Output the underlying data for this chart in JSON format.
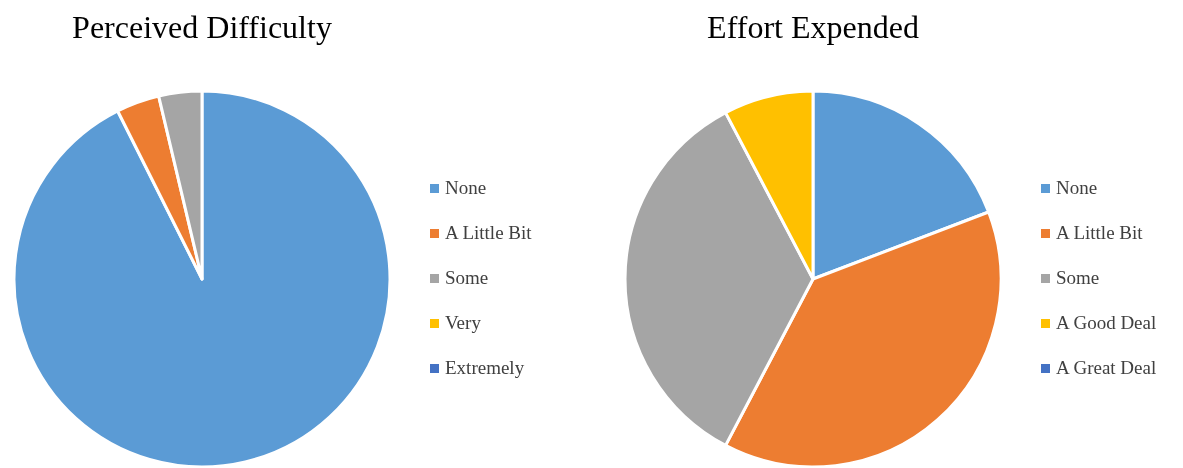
{
  "chart_data": [
    {
      "type": "pie",
      "title": "Perceived Difficulty",
      "categories": [
        "None",
        "A Little Bit",
        "Some",
        "Very",
        "Extremely"
      ],
      "values": [
        92.6,
        3.7,
        3.7,
        0,
        0
      ],
      "colors": [
        "#5b9bd5",
        "#ed7d31",
        "#a5a5a5",
        "#ffc000",
        "#4472c4"
      ],
      "legend": "right"
    },
    {
      "type": "pie",
      "title": "Effort Expended",
      "categories": [
        "None",
        "A Little Bit",
        "Some",
        "A Good Deal",
        "A Great Deal"
      ],
      "values": [
        19.2,
        38.5,
        34.6,
        7.7,
        0
      ],
      "colors": [
        "#5b9bd5",
        "#ed7d31",
        "#a5a5a5",
        "#ffc000",
        "#4472c4"
      ],
      "legend": "right"
    }
  ]
}
